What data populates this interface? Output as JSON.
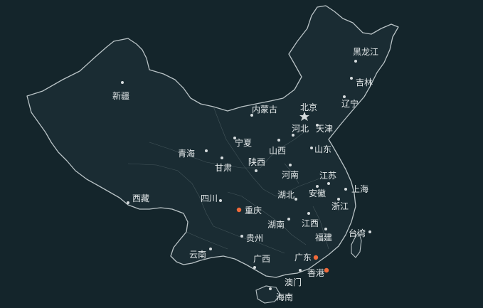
{
  "map": {
    "colors": {
      "background": "#14252b",
      "land": "#1a2c33",
      "outline": "#b9c3c6",
      "city_dot": "#d5dbdd",
      "highlight_dot": "#f06a3a"
    },
    "capital_icon": "star-icon",
    "places": [
      {
        "id": "xinjiang",
        "label": "新疆",
        "marker": "dot"
      },
      {
        "id": "xizang",
        "label": "西藏",
        "marker": "dot"
      },
      {
        "id": "qinghai",
        "label": "青海",
        "marker": "dot"
      },
      {
        "id": "gansu",
        "label": "甘肃",
        "marker": "dot"
      },
      {
        "id": "ningxia",
        "label": "宁夏",
        "marker": "dot"
      },
      {
        "id": "neimenggu",
        "label": "内蒙古",
        "marker": "dot"
      },
      {
        "id": "heilongjiang",
        "label": "黑龙江",
        "marker": "dot"
      },
      {
        "id": "jilin",
        "label": "吉林",
        "marker": "dot"
      },
      {
        "id": "liaoning",
        "label": "辽宁",
        "marker": "dot"
      },
      {
        "id": "beijing",
        "label": "北京",
        "marker": "star"
      },
      {
        "id": "tianjin",
        "label": "天津",
        "marker": "dot"
      },
      {
        "id": "hebei",
        "label": "河北",
        "marker": "dot"
      },
      {
        "id": "shanxi",
        "label": "山西",
        "marker": "dot"
      },
      {
        "id": "shandong",
        "label": "山东",
        "marker": "dot"
      },
      {
        "id": "shaanxi",
        "label": "陕西",
        "marker": "dot"
      },
      {
        "id": "henan",
        "label": "河南",
        "marker": "dot"
      },
      {
        "id": "jiangsu",
        "label": "江苏",
        "marker": "dot"
      },
      {
        "id": "shanghai",
        "label": "上海",
        "marker": "dot"
      },
      {
        "id": "anhui",
        "label": "安徽",
        "marker": "dot"
      },
      {
        "id": "hubei",
        "label": "湖北",
        "marker": "dot"
      },
      {
        "id": "zhejiang",
        "label": "浙江",
        "marker": "dot"
      },
      {
        "id": "sichuan",
        "label": "四川",
        "marker": "dot"
      },
      {
        "id": "chongqing",
        "label": "重庆",
        "marker": "highlight"
      },
      {
        "id": "hunan",
        "label": "湖南",
        "marker": "dot"
      },
      {
        "id": "jiangxi",
        "label": "江西",
        "marker": "dot"
      },
      {
        "id": "fujian",
        "label": "福建",
        "marker": "dot"
      },
      {
        "id": "taiwan",
        "label": "台湾",
        "marker": "dot"
      },
      {
        "id": "guizhou",
        "label": "贵州",
        "marker": "dot"
      },
      {
        "id": "yunnan",
        "label": "云南",
        "marker": "dot"
      },
      {
        "id": "guangxi",
        "label": "广西",
        "marker": "dot"
      },
      {
        "id": "guangdong",
        "label": "广东",
        "marker": "highlight"
      },
      {
        "id": "xianggang",
        "label": "香港",
        "marker": "highlight"
      },
      {
        "id": "aomen",
        "label": "澳门",
        "marker": "dot"
      },
      {
        "id": "hainan",
        "label": "海南",
        "marker": "dot"
      }
    ]
  }
}
